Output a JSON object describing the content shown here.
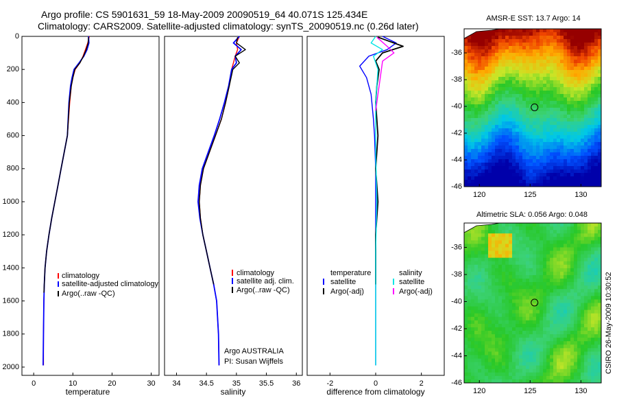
{
  "title_line1": "Argo profile: CS 5901631_59 18-May-2009 20090519_64 40.071S 125.434E",
  "title_line2": "Climatology: CARS2009. Satellite-adjusted climatology: synTS_20090519.nc (0.26d later)",
  "side_label": "CSIRO 26-May-2009 10:30:52",
  "float_position": {
    "lon": 125.434,
    "lat": -40.071
  },
  "colors": {
    "climatology": "#ff0000",
    "satellite": "#0000ff",
    "argo": "#000000",
    "salinity_satellite": "#00e5e5",
    "salinity_argo": "#ff00ff"
  },
  "panels": {
    "temperature": {
      "xlabel": "temperature",
      "xticks": [
        "0",
        "10",
        "20",
        "30"
      ],
      "xlim": [
        -3,
        32
      ],
      "legend": [
        "climatology",
        "satellite-adjusted climatology",
        "Argo(..raw -QC)"
      ]
    },
    "salinity": {
      "xlabel": "salinity",
      "xticks": [
        "34",
        "34.5",
        "35",
        "35.5",
        "36"
      ],
      "xlim": [
        33.8,
        36.1
      ],
      "legend": [
        "climatology",
        "satellite adj. clim.",
        "Argo(..raw -QC)"
      ],
      "notes": [
        "Argo AUSTRALIA",
        "PI: Susan Wijffels"
      ]
    },
    "difference": {
      "xlabel": "difference from climatology",
      "xticks": [
        "-2",
        "0",
        "2"
      ],
      "xlim": [
        -3,
        3
      ],
      "legend_temperature_header": "temperature",
      "legend_temperature": [
        "satellite",
        "Argo(-adj)"
      ],
      "legend_salinity_header": "salinity",
      "legend_salinity": [
        "satellite",
        "Argo(-adj)"
      ]
    },
    "y_axis": {
      "ticks": [
        "0",
        "200",
        "400",
        "600",
        "800",
        "1000",
        "1200",
        "1400",
        "1600",
        "1800",
        "2000"
      ],
      "ylim": [
        0,
        2050
      ],
      "reversed": true
    }
  },
  "maps": {
    "sst": {
      "title": "AMSR-E SST: 13.7 Argo: 14",
      "xticks": [
        "120",
        "125",
        "130"
      ],
      "yticks": [
        "-36",
        "-38",
        "-40",
        "-42",
        "-44",
        "-46"
      ],
      "xlim": [
        118.5,
        132
      ],
      "ylim": [
        -46,
        -34.2
      ]
    },
    "sla": {
      "title": "Altimetric SLA: 0.056 Argo: 0.048",
      "xticks": [
        "120",
        "125",
        "130"
      ],
      "yticks": [
        "-36",
        "-38",
        "-40",
        "-42",
        "-44",
        "-46"
      ],
      "xlim": [
        118.5,
        132
      ],
      "ylim": [
        -46,
        -34.2
      ]
    }
  },
  "chart_data": [
    {
      "type": "line",
      "title": "",
      "xlabel": "temperature",
      "ylabel": "",
      "xlim": [
        -3,
        32
      ],
      "ylim": [
        2050,
        0
      ],
      "series": [
        {
          "name": "climatology",
          "color": "#ff0000",
          "x": [
            14.2,
            13.8,
            13.2,
            12.6,
            11.8,
            10.6,
            10.0,
            9.6,
            9.2,
            8.6,
            7.8,
            7.0,
            6.2,
            5.4,
            4.6,
            3.9,
            3.3,
            2.9,
            2.7,
            2.6,
            2.5,
            2.5
          ],
          "y": [
            0,
            40,
            80,
            120,
            160,
            200,
            250,
            300,
            400,
            600,
            700,
            800,
            900,
            1000,
            1100,
            1200,
            1300,
            1400,
            1500,
            1600,
            1800,
            1990
          ]
        },
        {
          "name": "satellite-adjusted climatology",
          "color": "#0000ff",
          "x": [
            14.0,
            14.1,
            13.6,
            12.8,
            11.6,
            10.3,
            9.8,
            9.4,
            9.0,
            8.6,
            7.8,
            7.0,
            6.2,
            5.4,
            4.6,
            3.9,
            3.3,
            2.9,
            2.7,
            2.6,
            2.5,
            2.4
          ],
          "y": [
            0,
            40,
            80,
            120,
            160,
            200,
            250,
            300,
            400,
            600,
            700,
            800,
            900,
            1000,
            1100,
            1200,
            1300,
            1400,
            1500,
            1600,
            1800,
            1990
          ]
        },
        {
          "name": "Argo(..raw -QC)",
          "color": "#000000",
          "x": [
            14.0,
            13.9,
            13.4,
            12.7,
            11.8,
            10.5,
            10.0,
            9.6,
            9.1,
            8.6,
            7.8,
            7.0,
            6.2,
            5.4,
            4.6,
            3.9,
            3.3,
            2.9,
            2.7,
            2.6
          ],
          "y": [
            5,
            40,
            80,
            120,
            160,
            200,
            250,
            300,
            400,
            600,
            700,
            800,
            900,
            1000,
            1100,
            1200,
            1300,
            1400,
            1500,
            1550
          ]
        }
      ]
    },
    {
      "type": "line",
      "title": "",
      "xlabel": "salinity",
      "ylabel": "",
      "xlim": [
        33.8,
        36.1
      ],
      "ylim": [
        2050,
        0
      ],
      "series": [
        {
          "name": "climatology",
          "color": "#ff0000",
          "x": [
            35.05,
            35.0,
            35.02,
            34.98,
            34.95,
            34.92,
            34.88,
            34.82,
            34.75,
            34.65,
            34.55,
            34.45,
            34.4,
            34.38,
            34.4,
            34.44,
            34.5,
            34.56,
            34.62,
            34.67,
            34.7,
            34.71
          ],
          "y": [
            0,
            40,
            80,
            120,
            160,
            200,
            300,
            400,
            500,
            600,
            700,
            800,
            900,
            1000,
            1100,
            1200,
            1300,
            1400,
            1500,
            1600,
            1800,
            1990
          ]
        },
        {
          "name": "satellite adj. clim.",
          "color": "#0000ff",
          "x": [
            35.05,
            34.95,
            35.08,
            34.98,
            35.0,
            34.92,
            34.87,
            34.8,
            34.72,
            34.63,
            34.53,
            34.43,
            34.38,
            34.36,
            34.39,
            34.44,
            34.5,
            34.56,
            34.62,
            34.67,
            34.7,
            34.71
          ],
          "y": [
            0,
            40,
            80,
            120,
            160,
            200,
            300,
            400,
            500,
            600,
            700,
            800,
            900,
            1000,
            1100,
            1200,
            1300,
            1400,
            1500,
            1600,
            1800,
            1990
          ]
        },
        {
          "name": "Argo(..raw -QC)",
          "color": "#000000",
          "x": [
            35.02,
            35.0,
            35.15,
            34.98,
            35.05,
            34.94,
            34.88,
            34.82,
            34.75,
            34.65,
            34.55,
            34.45,
            34.4,
            34.38,
            34.4,
            34.44,
            34.5,
            34.56,
            34.62
          ],
          "y": [
            5,
            40,
            80,
            120,
            160,
            200,
            300,
            400,
            500,
            600,
            700,
            800,
            900,
            1000,
            1100,
            1200,
            1300,
            1400,
            1500
          ]
        }
      ]
    },
    {
      "type": "line",
      "title": "",
      "xlabel": "difference from climatology",
      "ylabel": "",
      "xlim": [
        -3,
        3
      ],
      "ylim": [
        2050,
        0
      ],
      "series": [
        {
          "name": "temperature satellite",
          "color": "#0000ff",
          "x": [
            0.3,
            0.9,
            0.5,
            -0.3,
            -0.7,
            -0.4,
            -0.2,
            -0.1,
            -0.05,
            0.0,
            0.0,
            0.0,
            0.0,
            0.0
          ],
          "y": [
            0,
            40,
            80,
            120,
            180,
            250,
            350,
            500,
            600,
            800,
            1000,
            1400,
            1800,
            1990
          ]
        },
        {
          "name": "temperature Argo(-adj)",
          "color": "#000000",
          "x": [
            0.1,
            1.2,
            0.3,
            0.0,
            0.15,
            0.05,
            0.0,
            0.1,
            0.0,
            0.05,
            0.1,
            0.0,
            0.0
          ],
          "y": [
            5,
            60,
            100,
            150,
            200,
            300,
            400,
            600,
            800,
            900,
            1000,
            1200,
            1500
          ]
        },
        {
          "name": "salinity satellite",
          "color": "#00e5e5",
          "x": [
            0.0,
            -0.2,
            0.3,
            -0.1,
            0.1,
            0.0,
            0.0,
            0.05,
            0.0,
            0.0,
            0.0
          ],
          "y": [
            0,
            40,
            80,
            120,
            200,
            400,
            700,
            1000,
            1300,
            1700,
            1990
          ]
        },
        {
          "name": "salinity Argo(-adj)",
          "color": "#ff00ff",
          "x": [
            0.05,
            0.5,
            0.8,
            0.3,
            0.2,
            0.1,
            0.0
          ],
          "y": [
            5,
            60,
            100,
            150,
            250,
            350,
            450
          ]
        }
      ]
    }
  ]
}
